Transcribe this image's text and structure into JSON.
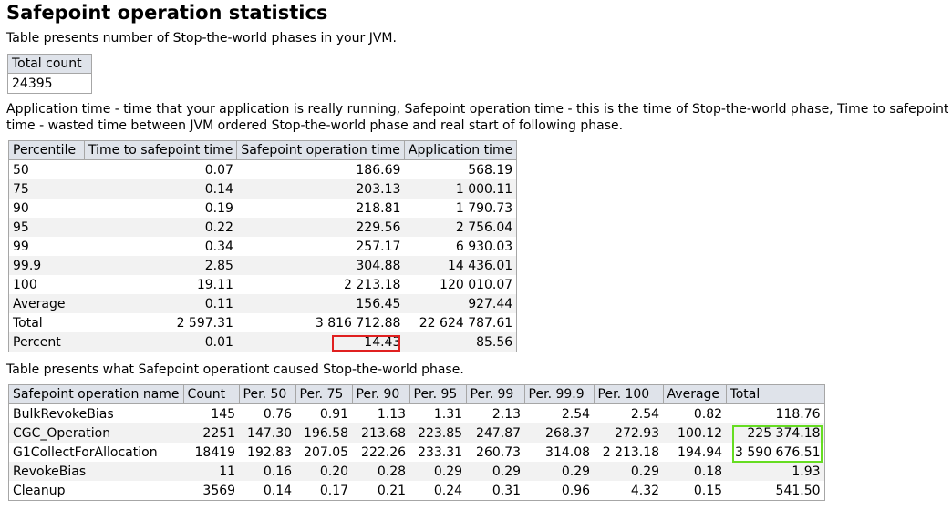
{
  "page": {
    "title": "Safepoint operation statistics",
    "intro": "Table presents number of Stop-the-world phases in your JVM.",
    "description": "Application time - time that your application is really running, Safepoint operation time - this is the time of Stop-the-world phase, Time to safepoint time - wasted time between JVM ordered Stop-the-world phase and real start of following phase.",
    "ops_intro": "Table presents what Safepoint operationt caused Stop-the-world phase."
  },
  "total_table": {
    "header": "Total count",
    "value": "24395"
  },
  "percentile_table": {
    "headers": [
      "Percentile",
      "Time to safepoint time",
      "Safepoint operation time",
      "Application time"
    ],
    "rows": [
      [
        "50",
        "0.07",
        "186.69",
        "568.19"
      ],
      [
        "75",
        "0.14",
        "203.13",
        "1 000.11"
      ],
      [
        "90",
        "0.19",
        "218.81",
        "1 790.73"
      ],
      [
        "95",
        "0.22",
        "229.56",
        "2 756.04"
      ],
      [
        "99",
        "0.34",
        "257.17",
        "6 930.03"
      ],
      [
        "99.9",
        "2.85",
        "304.88",
        "14 436.01"
      ],
      [
        "100",
        "19.11",
        "2 213.18",
        "120 010.07"
      ],
      [
        "Average",
        "0.11",
        "156.45",
        "927.44"
      ],
      [
        "Total",
        "2 597.31",
        "3 816 712.88",
        "22 624 787.61"
      ],
      [
        "Percent",
        "0.01",
        "14.43",
        "85.56"
      ]
    ]
  },
  "ops_table": {
    "headers": [
      "Safepoint operation name",
      "Count",
      "Per. 50",
      "Per. 75",
      "Per. 90",
      "Per. 95",
      "Per. 99",
      "Per. 99.9",
      "Per. 100",
      "Average",
      "Total"
    ],
    "rows": [
      [
        "BulkRevokeBias",
        "145",
        "0.76",
        "0.91",
        "1.13",
        "1.31",
        "2.13",
        "2.54",
        "2.54",
        "0.82",
        "118.76"
      ],
      [
        "CGC_Operation",
        "2251",
        "147.30",
        "196.58",
        "213.68",
        "223.85",
        "247.87",
        "268.37",
        "272.93",
        "100.12",
        "225 374.18"
      ],
      [
        "G1CollectForAllocation",
        "18419",
        "192.83",
        "207.05",
        "222.26",
        "233.31",
        "260.73",
        "314.08",
        "2 213.18",
        "194.94",
        "3 590 676.51"
      ],
      [
        "RevokeBias",
        "11",
        "0.16",
        "0.20",
        "0.28",
        "0.29",
        "0.29",
        "0.29",
        "0.29",
        "0.18",
        "1.93"
      ],
      [
        "Cleanup",
        "3569",
        "0.14",
        "0.17",
        "0.21",
        "0.24",
        "0.31",
        "0.96",
        "4.32",
        "0.15",
        "541.50"
      ]
    ]
  },
  "highlight_colors": {
    "red_box": "#e02020",
    "green_box": "#66dd22"
  }
}
